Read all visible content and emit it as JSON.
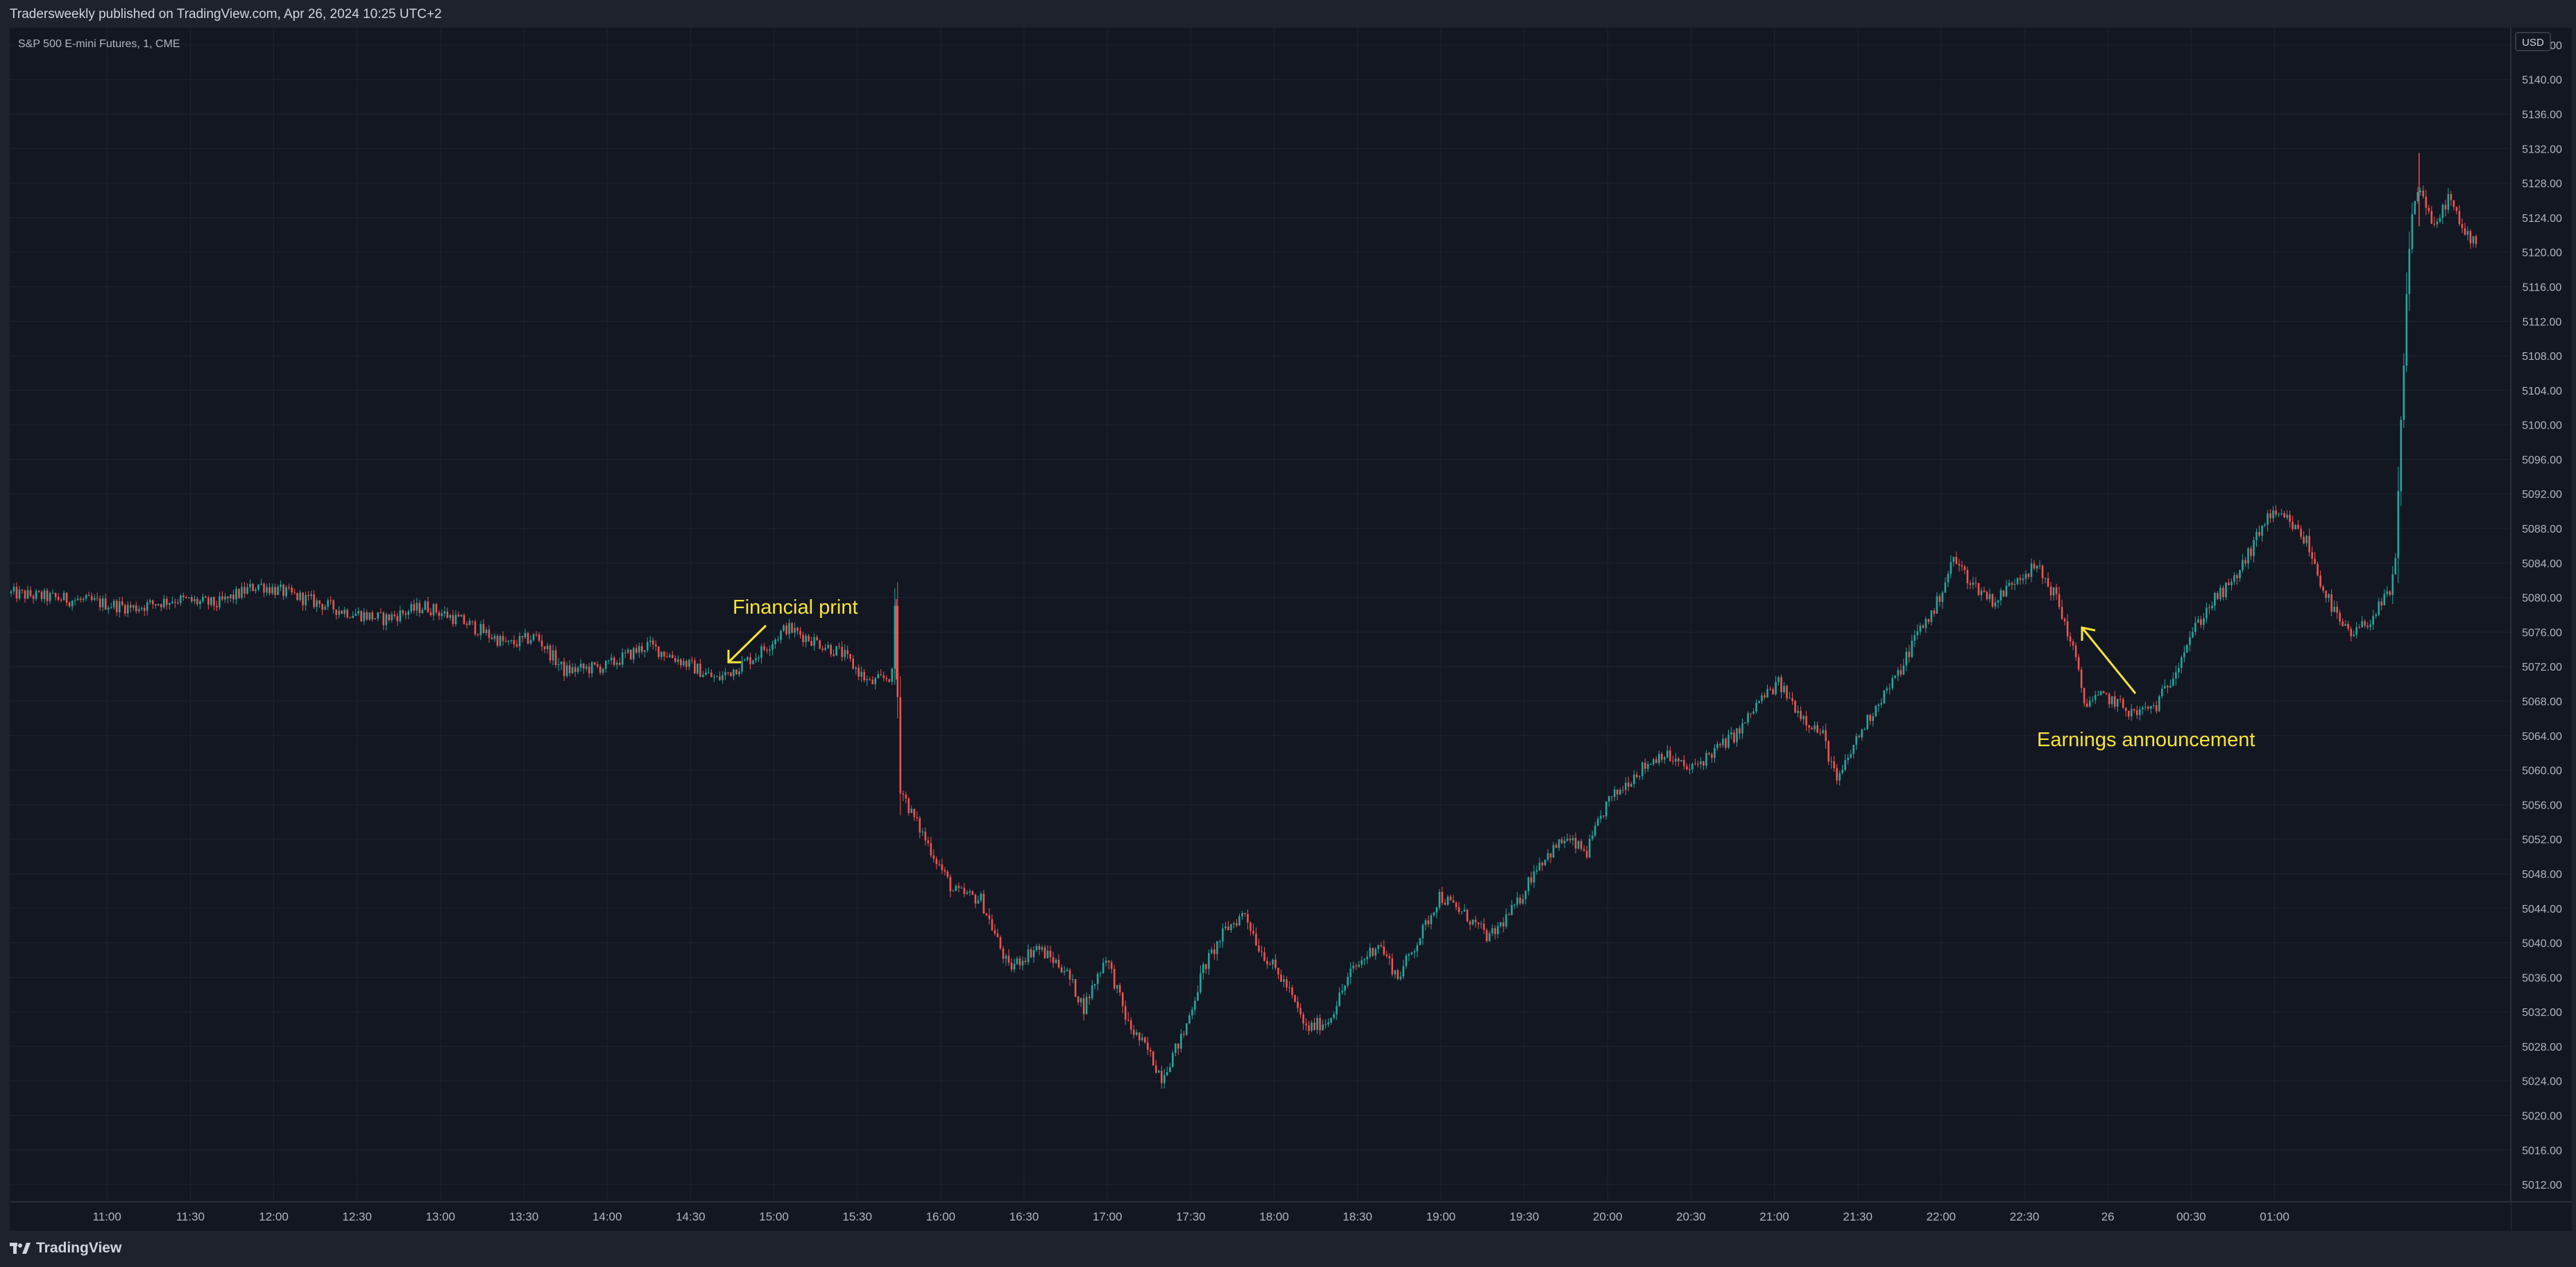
{
  "header": {
    "published": "Tradersweekly published on TradingView.com, Apr 26, 2024 10:25 UTC+2"
  },
  "footer": {
    "brand": "TradingView"
  },
  "colors": {
    "background": "#131722",
    "grid": "#1f2331",
    "up": "#26a69a",
    "down": "#ef5350",
    "annotation": "#f7e23a",
    "axis_text": "#b2b5be"
  },
  "chart_data": {
    "type": "candlestick",
    "title": "S&P 500 E-mini Futures, 1, CME",
    "currency": "USD",
    "ylim": [
      5010,
      5146
    ],
    "y_ticks": [
      "5012.00",
      "5016.00",
      "5020.00",
      "5024.00",
      "5028.00",
      "5032.00",
      "5036.00",
      "5040.00",
      "5044.00",
      "5048.00",
      "5052.00",
      "5056.00",
      "5060.00",
      "5064.00",
      "5068.00",
      "5072.00",
      "5076.00",
      "5080.00",
      "5084.00",
      "5088.00",
      "5092.00",
      "5096.00",
      "5100.00",
      "5104.00",
      "5108.00",
      "5112.00",
      "5116.00",
      "5120.00",
      "5124.00",
      "5128.00",
      "5132.00",
      "5136.00",
      "5140.00",
      "5144.00"
    ],
    "x_ticks": [
      "11:00",
      "11:30",
      "12:00",
      "12:30",
      "13:00",
      "13:30",
      "14:00",
      "14:30",
      "15:00",
      "15:30",
      "16:00",
      "16:30",
      "17:00",
      "17:30",
      "18:00",
      "18:30",
      "19:00",
      "19:30",
      "20:00",
      "20:30",
      "21:00",
      "21:30",
      "22:00",
      "22:30",
      "26",
      "00:30",
      "01:00"
    ],
    "x_range_minutes": [
      625,
      1525
    ],
    "x_tick_start_minute": 660,
    "x_tick_step_minutes": 30,
    "price_path": [
      [
        625,
        5080.5
      ],
      [
        640,
        5080.0
      ],
      [
        655,
        5079.5
      ],
      [
        670,
        5078.8
      ],
      [
        685,
        5079.8
      ],
      [
        700,
        5079.2
      ],
      [
        715,
        5081.5
      ],
      [
        730,
        5080.0
      ],
      [
        745,
        5078.5
      ],
      [
        760,
        5077.5
      ],
      [
        775,
        5079.0
      ],
      [
        790,
        5077.0
      ],
      [
        805,
        5074.5
      ],
      [
        815,
        5075.5
      ],
      [
        825,
        5071.5
      ],
      [
        840,
        5072.0
      ],
      [
        855,
        5074.5
      ],
      [
        865,
        5073.0
      ],
      [
        880,
        5070.5
      ],
      [
        895,
        5073.5
      ],
      [
        905,
        5076.5
      ],
      [
        915,
        5075.0
      ],
      [
        925,
        5073.5
      ],
      [
        935,
        5070.0
      ],
      [
        943,
        5071.0
      ],
      [
        944,
        5079.0
      ],
      [
        946,
        5058.0
      ],
      [
        950,
        5055.0
      ],
      [
        955,
        5052.0
      ],
      [
        965,
        5046.0
      ],
      [
        975,
        5045.0
      ],
      [
        985,
        5037.0
      ],
      [
        995,
        5039.5
      ],
      [
        1005,
        5037.0
      ],
      [
        1012,
        5032.5
      ],
      [
        1020,
        5038.5
      ],
      [
        1028,
        5030.5
      ],
      [
        1035,
        5027.5
      ],
      [
        1040,
        5024.5
      ],
      [
        1048,
        5029.5
      ],
      [
        1055,
        5037.0
      ],
      [
        1063,
        5041.5
      ],
      [
        1070,
        5043.5
      ],
      [
        1075,
        5039.5
      ],
      [
        1085,
        5035.0
      ],
      [
        1092,
        5030.0
      ],
      [
        1100,
        5031.0
      ],
      [
        1108,
        5036.5
      ],
      [
        1118,
        5040.0
      ],
      [
        1125,
        5036.0
      ],
      [
        1135,
        5042.0
      ],
      [
        1140,
        5045.5
      ],
      [
        1150,
        5043.0
      ],
      [
        1158,
        5040.5
      ],
      [
        1168,
        5044.5
      ],
      [
        1175,
        5049.0
      ],
      [
        1185,
        5052.0
      ],
      [
        1193,
        5050.5
      ],
      [
        1200,
        5056.0
      ],
      [
        1210,
        5059.5
      ],
      [
        1220,
        5062.0
      ],
      [
        1230,
        5060.0
      ],
      [
        1240,
        5062.5
      ],
      [
        1248,
        5064.5
      ],
      [
        1255,
        5068.0
      ],
      [
        1262,
        5070.0
      ],
      [
        1270,
        5066.5
      ],
      [
        1278,
        5064.0
      ],
      [
        1283,
        5058.5
      ],
      [
        1290,
        5063.5
      ],
      [
        1298,
        5068.0
      ],
      [
        1305,
        5071.0
      ],
      [
        1312,
        5076.0
      ],
      [
        1318,
        5078.5
      ],
      [
        1325,
        5084.5
      ],
      [
        1332,
        5081.5
      ],
      [
        1340,
        5079.5
      ],
      [
        1348,
        5082.5
      ],
      [
        1355,
        5083.5
      ],
      [
        1362,
        5080.0
      ],
      [
        1368,
        5074.0
      ],
      [
        1372,
        5068.0
      ],
      [
        1380,
        5068.5
      ],
      [
        1390,
        5066.5
      ],
      [
        1398,
        5067.5
      ],
      [
        1403,
        5070.5
      ],
      [
        1410,
        5075.5
      ],
      [
        1418,
        5079.5
      ],
      [
        1425,
        5081.5
      ],
      [
        1432,
        5085.5
      ],
      [
        1438,
        5089.5
      ],
      [
        1445,
        5089.0
      ],
      [
        1452,
        5086.5
      ],
      [
        1458,
        5081.0
      ],
      [
        1464,
        5077.0
      ],
      [
        1468,
        5075.5
      ],
      [
        1475,
        5077.5
      ],
      [
        1482,
        5080.5
      ],
      [
        1484,
        5084.0
      ],
      [
        1486,
        5100.0
      ],
      [
        1488,
        5115.0
      ],
      [
        1490,
        5125.0
      ],
      [
        1493,
        5127.5
      ],
      [
        1498,
        5122.5
      ],
      [
        1503,
        5126.5
      ],
      [
        1508,
        5122.5
      ],
      [
        1512,
        5121.5
      ]
    ],
    "annotations": [
      {
        "text": "Financial print"
      },
      {
        "text": "Earnings announcement"
      }
    ]
  }
}
